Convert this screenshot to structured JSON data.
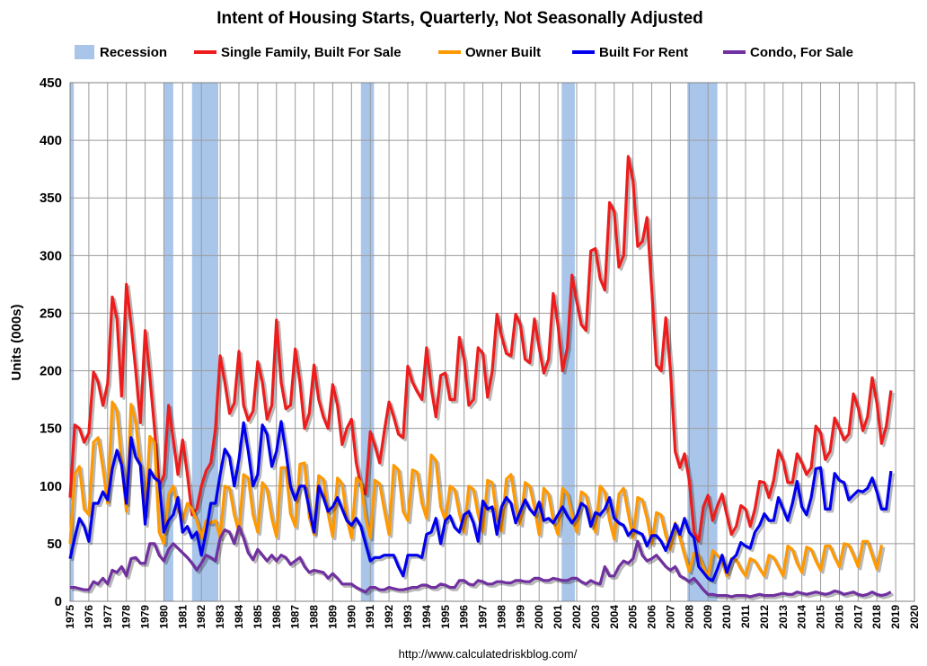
{
  "chart_data": {
    "type": "line",
    "title": "Intent of Housing Starts, Quarterly, Not Seasonally Adjusted",
    "ylabel": "Units  (000s)",
    "xlabel": "",
    "source": "http://www.calculatedriskblog.com/",
    "ylim": [
      0,
      450
    ],
    "xlim": [
      1975,
      2020
    ],
    "yticks": [
      0,
      50,
      100,
      150,
      200,
      250,
      300,
      350,
      400,
      450
    ],
    "xticks": [
      1975,
      1976,
      1977,
      1978,
      1979,
      1980,
      1981,
      1982,
      1983,
      1984,
      1985,
      1986,
      1987,
      1988,
      1989,
      1990,
      1991,
      1992,
      1993,
      1994,
      1995,
      1996,
      1997,
      1998,
      1999,
      2000,
      2001,
      2002,
      2003,
      2004,
      2005,
      2006,
      2007,
      2008,
      2009,
      2010,
      2011,
      2012,
      2013,
      2014,
      2015,
      2016,
      2017,
      2018,
      2019,
      2020
    ],
    "grid": true,
    "legend_position": "top",
    "recession_label": "Recession",
    "recession_color": "#a9c6ea",
    "recessions": [
      [
        1975.0,
        1975.2
      ],
      [
        1980.0,
        1980.5
      ],
      [
        1981.5,
        1982.9
      ],
      [
        1990.5,
        1991.2
      ],
      [
        2001.2,
        2001.9
      ],
      [
        2007.9,
        2009.5
      ]
    ],
    "quarterly_start": 1975.0,
    "series": [
      {
        "name": "Single Family, Built For Sale",
        "color": "#ee1c1c",
        "values": [
          90,
          153,
          150,
          138,
          146,
          199,
          190,
          170,
          189,
          264,
          245,
          178,
          275,
          240,
          200,
          155,
          235,
          195,
          150,
          100,
          109,
          170,
          140,
          110,
          140,
          110,
          75,
          80,
          100,
          113,
          120,
          150,
          213,
          190,
          163,
          172,
          217,
          170,
          157,
          165,
          208,
          190,
          158,
          170,
          244,
          190,
          167,
          170,
          219,
          190,
          150,
          163,
          205,
          175,
          160,
          150,
          188,
          170,
          136,
          150,
          158,
          120,
          100,
          93,
          147,
          135,
          120,
          148,
          173,
          160,
          145,
          142,
          204,
          190,
          182,
          175,
          220,
          185,
          160,
          196,
          198,
          175,
          175,
          229,
          210,
          170,
          175,
          220,
          215,
          177,
          200,
          249,
          230,
          215,
          213,
          249,
          240,
          210,
          207,
          245,
          220,
          198,
          210,
          267,
          240,
          200,
          220,
          283,
          260,
          240,
          235,
          304,
          306,
          280,
          270,
          346,
          338,
          290,
          300,
          386,
          365,
          308,
          312,
          333,
          270,
          205,
          200,
          246,
          200,
          130,
          116,
          128,
          105,
          60,
          52,
          82,
          92,
          70,
          83,
          93,
          75,
          58,
          65,
          83,
          80,
          65,
          80,
          104,
          103,
          90,
          105,
          131,
          122,
          103,
          103,
          128,
          120,
          110,
          116,
          152,
          146,
          123,
          130,
          159,
          150,
          140,
          145,
          180,
          168,
          148,
          160,
          194,
          172,
          137,
          152,
          183
        ]
      },
      {
        "name": "Owner Built",
        "color": "#ff9900",
        "values": [
          50,
          110,
          117,
          80,
          75,
          138,
          142,
          115,
          85,
          173,
          165,
          120,
          78,
          171,
          155,
          118,
          75,
          143,
          138,
          60,
          50,
          93,
          100,
          80,
          70,
          85,
          80,
          70,
          55,
          70,
          68,
          70,
          55,
          100,
          98,
          75,
          60,
          110,
          107,
          75,
          60,
          103,
          97,
          72,
          56,
          116,
          116,
          76,
          65,
          119,
          120,
          73,
          58,
          109,
          106,
          76,
          56,
          107,
          102,
          72,
          55,
          107,
          103,
          72,
          55,
          105,
          102,
          79,
          58,
          118,
          114,
          78,
          70,
          114,
          112,
          85,
          72,
          127,
          122,
          82,
          70,
          100,
          97,
          76,
          60,
          100,
          97,
          75,
          60,
          105,
          103,
          73,
          61,
          106,
          110,
          83,
          67,
          103,
          100,
          81,
          58,
          98,
          93,
          70,
          58,
          98,
          93,
          75,
          60,
          95,
          92,
          73,
          60,
          100,
          95,
          70,
          54,
          93,
          98,
          76,
          55,
          90,
          88,
          72,
          50,
          77,
          75,
          57,
          45,
          68,
          55,
          40,
          26,
          42,
          40,
          30,
          20,
          44,
          40,
          35,
          22,
          37,
          36,
          28,
          22,
          37,
          35,
          28,
          22,
          40,
          38,
          30,
          22,
          48,
          45,
          33,
          25,
          47,
          45,
          35,
          27,
          48,
          48,
          38,
          30,
          50,
          49,
          40,
          30,
          52,
          52,
          40,
          28,
          49
        ]
      },
      {
        "name": "Built For Rent",
        "color": "#0000ee",
        "values": [
          37,
          55,
          72,
          65,
          52,
          85,
          85,
          95,
          88,
          115,
          131,
          118,
          85,
          142,
          125,
          118,
          67,
          114,
          107,
          104,
          60,
          70,
          75,
          90,
          60,
          65,
          55,
          60,
          40,
          60,
          85,
          85,
          110,
          132,
          125,
          100,
          123,
          155,
          130,
          100,
          110,
          153,
          145,
          117,
          130,
          156,
          130,
          100,
          88,
          100,
          100,
          80,
          60,
          100,
          90,
          78,
          82,
          90,
          80,
          70,
          66,
          72,
          65,
          50,
          35,
          38,
          38,
          40,
          40,
          40,
          30,
          22,
          40,
          40,
          40,
          38,
          58,
          60,
          72,
          50,
          70,
          74,
          64,
          60,
          75,
          78,
          68,
          52,
          87,
          80,
          82,
          58,
          82,
          90,
          85,
          68,
          78,
          88,
          80,
          75,
          86,
          70,
          72,
          68,
          75,
          82,
          74,
          68,
          74,
          85,
          82,
          65,
          77,
          75,
          80,
          90,
          72,
          68,
          66,
          57,
          62,
          60,
          58,
          48,
          57,
          57,
          52,
          44,
          55,
          67,
          58,
          72,
          60,
          55,
          30,
          25,
          20,
          18,
          28,
          40,
          25,
          36,
          40,
          51,
          48,
          46,
          60,
          66,
          76,
          70,
          70,
          90,
          80,
          70,
          85,
          104,
          82,
          75,
          90,
          115,
          116,
          80,
          80,
          111,
          105,
          103,
          88,
          92,
          96,
          95,
          98,
          107,
          95,
          80,
          80,
          113
        ]
      },
      {
        "name": "Condo, For Sale",
        "color": "#7030a0",
        "values": [
          12,
          12,
          11,
          10,
          10,
          17,
          15,
          20,
          15,
          27,
          25,
          30,
          22,
          37,
          38,
          33,
          33,
          50,
          50,
          40,
          35,
          45,
          50,
          46,
          42,
          38,
          33,
          27,
          33,
          40,
          38,
          35,
          55,
          62,
          60,
          50,
          65,
          55,
          42,
          36,
          45,
          40,
          35,
          40,
          35,
          40,
          38,
          32,
          35,
          38,
          30,
          25,
          27,
          26,
          25,
          20,
          24,
          20,
          15,
          15,
          15,
          12,
          10,
          8,
          12,
          12,
          10,
          10,
          12,
          11,
          10,
          10,
          11,
          12,
          12,
          14,
          14,
          12,
          12,
          15,
          14,
          12,
          12,
          18,
          18,
          15,
          14,
          18,
          17,
          15,
          15,
          17,
          17,
          16,
          16,
          18,
          18,
          17,
          17,
          20,
          20,
          18,
          18,
          20,
          19,
          18,
          18,
          20,
          20,
          17,
          15,
          18,
          16,
          15,
          30,
          22,
          22,
          30,
          35,
          33,
          37,
          52,
          40,
          35,
          37,
          40,
          35,
          30,
          27,
          30,
          22,
          20,
          17,
          20,
          15,
          10,
          6,
          6,
          5,
          5,
          5,
          4,
          5,
          5,
          5,
          4,
          5,
          6,
          5,
          5,
          5,
          6,
          7,
          6,
          6,
          8,
          7,
          6,
          7,
          8,
          7,
          6,
          7,
          9,
          8,
          6,
          7,
          8,
          6,
          5,
          6,
          8,
          6,
          5,
          6,
          8
        ]
      }
    ]
  }
}
